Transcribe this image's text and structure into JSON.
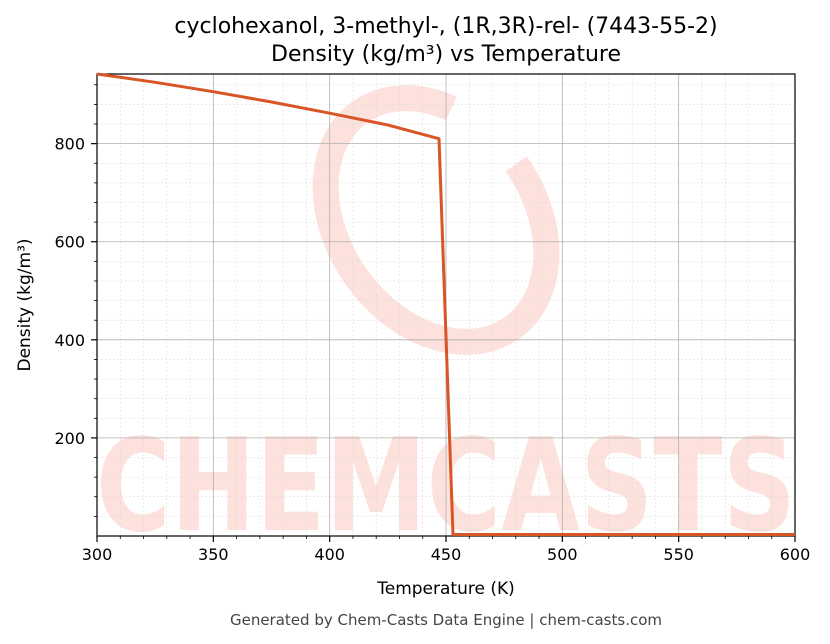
{
  "chart_data": {
    "type": "line",
    "title_line1": "cyclohexanol, 3-methyl-, (1R,3R)-rel- (7443-55-2)",
    "title_line2": "Density (kg/m³) vs Temperature",
    "xlabel": "Temperature (K)",
    "ylabel": "Density (kg/m³)",
    "xlim": [
      300,
      600
    ],
    "ylim": [
      0,
      942
    ],
    "xticks": [
      300,
      350,
      400,
      450,
      500,
      550,
      600
    ],
    "yticks": [
      200,
      400,
      600,
      800
    ],
    "grid": true,
    "series": [
      {
        "color": "#d95525",
        "x": [
          300,
          325,
          350,
          375,
          400,
          425,
          447,
          453,
          600
        ],
        "y": [
          942,
          925,
          906,
          885,
          862,
          838,
          810,
          3,
          3
        ]
      }
    ]
  },
  "watermark": {
    "text": "CHEMCASTS",
    "color": "#fde1dc"
  },
  "footer": {
    "text": "Generated by Chem-Casts Data Engine | chem-casts.com"
  }
}
